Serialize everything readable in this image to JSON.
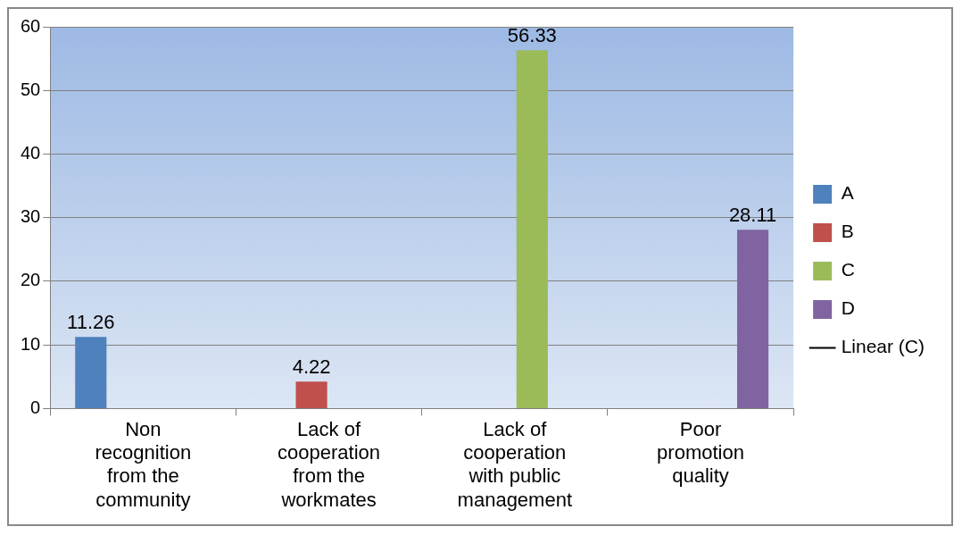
{
  "chart_data": {
    "type": "bar",
    "categories": [
      "Non recognition from the community",
      "Lack of cooperation from the workmates",
      "Lack of cooperation with public management",
      "Poor promotion quality"
    ],
    "series": [
      {
        "name": "A",
        "color": "#4f81bd",
        "values": [
          11.26,
          null,
          null,
          null
        ]
      },
      {
        "name": "B",
        "color": "#c0504d",
        "values": [
          null,
          4.22,
          null,
          null
        ]
      },
      {
        "name": "C",
        "color": "#9bbb59",
        "values": [
          null,
          null,
          56.33,
          null
        ]
      },
      {
        "name": "D",
        "color": "#8064a2",
        "values": [
          null,
          null,
          null,
          28.11
        ]
      },
      {
        "name": "Linear (C)",
        "type": "line",
        "color": "#000000",
        "values": [
          null,
          null,
          null,
          null
        ]
      }
    ],
    "ylim": [
      0,
      60
    ],
    "yticks": [
      0,
      10,
      20,
      30,
      40,
      50,
      60
    ],
    "grid": "y",
    "legend": "right",
    "data_labels": true
  }
}
